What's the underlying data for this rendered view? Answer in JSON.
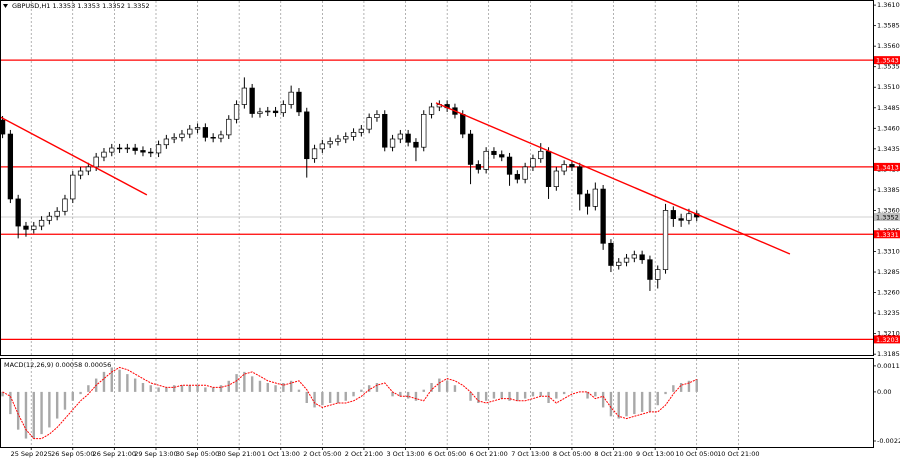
{
  "chart_data": [
    {
      "type": "candlestick",
      "title": "GBPUSD,H1  1.3353 1.3353 1.3352 1.3352",
      "x": [
        0,
        1,
        2,
        3,
        4,
        5,
        6,
        7,
        8,
        9,
        10,
        11,
        12,
        13,
        14,
        15,
        16,
        17,
        18,
        19,
        20,
        21,
        22,
        23,
        24,
        25,
        26,
        27,
        28,
        29,
        30,
        31,
        32,
        33,
        34,
        35,
        36,
        37,
        38,
        39,
        40,
        41,
        42,
        43,
        44,
        45,
        46,
        47,
        48,
        49,
        50,
        51,
        52,
        53,
        54,
        55,
        56,
        57,
        58,
        59,
        60,
        61,
        62,
        63,
        64,
        65,
        66,
        67,
        68,
        69,
        70,
        71,
        72,
        73,
        74,
        75,
        76,
        77,
        78,
        79,
        80,
        81,
        82,
        83,
        84,
        85,
        86,
        87,
        88,
        89
      ],
      "ohlc": [
        [
          1.347,
          1.3475,
          1.3448,
          1.3453
        ],
        [
          1.3453,
          1.3458,
          1.3369,
          1.3374
        ],
        [
          1.3374,
          1.3379,
          1.3326,
          1.3341
        ],
        [
          1.3341,
          1.3346,
          1.3328,
          1.3337
        ],
        [
          1.3337,
          1.3346,
          1.3332,
          1.3341
        ],
        [
          1.3341,
          1.3353,
          1.3336,
          1.3348
        ],
        [
          1.3348,
          1.3358,
          1.3343,
          1.3353
        ],
        [
          1.3353,
          1.3364,
          1.3348,
          1.3359
        ],
        [
          1.3359,
          1.3379,
          1.3354,
          1.3374
        ],
        [
          1.3374,
          1.3408,
          1.3369,
          1.3403
        ],
        [
          1.3403,
          1.3413,
          1.3398,
          1.3408
        ],
        [
          1.3408,
          1.3418,
          1.3403,
          1.3413
        ],
        [
          1.3413,
          1.343,
          1.3408,
          1.3425
        ],
        [
          1.3425,
          1.3436,
          1.342,
          1.3431
        ],
        [
          1.3431,
          1.3441,
          1.3426,
          1.3436
        ],
        [
          1.3436,
          1.3441,
          1.343,
          1.3435
        ],
        [
          1.3435,
          1.3441,
          1.343,
          1.3436
        ],
        [
          1.3436,
          1.3441,
          1.3428,
          1.3433
        ],
        [
          1.3433,
          1.3438,
          1.3426,
          1.3431
        ],
        [
          1.3431,
          1.3436,
          1.3425,
          1.343
        ],
        [
          1.343,
          1.3445,
          1.3425,
          1.344
        ],
        [
          1.344,
          1.3452,
          1.3435,
          1.3447
        ],
        [
          1.3447,
          1.3454,
          1.3442,
          1.3449
        ],
        [
          1.3449,
          1.3458,
          1.3444,
          1.3453
        ],
        [
          1.3453,
          1.3464,
          1.3448,
          1.3459
        ],
        [
          1.3459,
          1.3466,
          1.3454,
          1.3461
        ],
        [
          1.3461,
          1.3466,
          1.3444,
          1.3449
        ],
        [
          1.3449,
          1.3454,
          1.3443,
          1.3448
        ],
        [
          1.3448,
          1.3457,
          1.3443,
          1.3452
        ],
        [
          1.3452,
          1.3476,
          1.3447,
          1.3471
        ],
        [
          1.3471,
          1.3494,
          1.3466,
          1.3489
        ],
        [
          1.3489,
          1.3522,
          1.3484,
          1.3509
        ],
        [
          1.3509,
          1.3514,
          1.3473,
          1.3478
        ],
        [
          1.3478,
          1.3485,
          1.3473,
          1.348
        ],
        [
          1.348,
          1.3486,
          1.3475,
          1.3481
        ],
        [
          1.3481,
          1.3486,
          1.3474,
          1.3479
        ],
        [
          1.3479,
          1.3494,
          1.3474,
          1.3489
        ],
        [
          1.3489,
          1.3512,
          1.3484,
          1.3504
        ],
        [
          1.3504,
          1.3509,
          1.3475,
          1.348
        ],
        [
          1.348,
          1.3485,
          1.34,
          1.3423
        ],
        [
          1.3423,
          1.344,
          1.3418,
          1.3435
        ],
        [
          1.3435,
          1.3446,
          1.343,
          1.3441
        ],
        [
          1.3441,
          1.3449,
          1.3436,
          1.3444
        ],
        [
          1.3444,
          1.3452,
          1.3439,
          1.3447
        ],
        [
          1.3447,
          1.3455,
          1.3442,
          1.345
        ],
        [
          1.345,
          1.346,
          1.3445,
          1.3455
        ],
        [
          1.3455,
          1.3464,
          1.345,
          1.3459
        ],
        [
          1.3459,
          1.3478,
          1.3454,
          1.3473
        ],
        [
          1.3473,
          1.3482,
          1.3468,
          1.3477
        ],
        [
          1.3477,
          1.3482,
          1.3432,
          1.3437
        ],
        [
          1.3437,
          1.3452,
          1.3432,
          1.3447
        ],
        [
          1.3447,
          1.3458,
          1.3442,
          1.3453
        ],
        [
          1.3453,
          1.3458,
          1.3438,
          1.3443
        ],
        [
          1.3443,
          1.3448,
          1.342,
          1.3437
        ],
        [
          1.3437,
          1.3482,
          1.3432,
          1.3477
        ],
        [
          1.3477,
          1.3491,
          1.3472,
          1.3486
        ],
        [
          1.3486,
          1.3494,
          1.3481,
          1.3489
        ],
        [
          1.3489,
          1.3494,
          1.348,
          1.3485
        ],
        [
          1.3485,
          1.349,
          1.3472,
          1.3477
        ],
        [
          1.3477,
          1.3482,
          1.3448,
          1.3453
        ],
        [
          1.3453,
          1.3458,
          1.3392,
          1.3416
        ],
        [
          1.3416,
          1.3421,
          1.3405,
          1.341
        ],
        [
          1.341,
          1.3437,
          1.3405,
          1.3432
        ],
        [
          1.3432,
          1.3437,
          1.3423,
          1.3428
        ],
        [
          1.3428,
          1.3433,
          1.342,
          1.3425
        ],
        [
          1.3425,
          1.343,
          1.339,
          1.3404
        ],
        [
          1.3404,
          1.3409,
          1.3393,
          1.3398
        ],
        [
          1.3398,
          1.3418,
          1.3393,
          1.3413
        ],
        [
          1.3413,
          1.3428,
          1.3408,
          1.3423
        ],
        [
          1.3423,
          1.3442,
          1.3418,
          1.3432
        ],
        [
          1.3432,
          1.3437,
          1.3374,
          1.3389
        ],
        [
          1.3389,
          1.3413,
          1.3384,
          1.3408
        ],
        [
          1.3408,
          1.3421,
          1.3403,
          1.3416
        ],
        [
          1.3416,
          1.3421,
          1.3408,
          1.3413
        ],
        [
          1.3413,
          1.3418,
          1.336,
          1.338
        ],
        [
          1.338,
          1.3385,
          1.3355,
          1.3365
        ],
        [
          1.3365,
          1.3394,
          1.336,
          1.3386
        ],
        [
          1.3386,
          1.3391,
          1.3312,
          1.332
        ],
        [
          1.332,
          1.3325,
          1.3285,
          1.3293
        ],
        [
          1.3293,
          1.3302,
          1.3288,
          1.3297
        ],
        [
          1.3297,
          1.3307,
          1.3292,
          1.3302
        ],
        [
          1.3302,
          1.3311,
          1.3297,
          1.3306
        ],
        [
          1.3306,
          1.3311,
          1.3295,
          1.33
        ],
        [
          1.33,
          1.3305,
          1.3262,
          1.3276
        ],
        [
          1.3276,
          1.3293,
          1.3265,
          1.3288
        ],
        [
          1.3288,
          1.3368,
          1.3283,
          1.336
        ],
        [
          1.336,
          1.3365,
          1.334,
          1.335
        ],
        [
          1.335,
          1.3356,
          1.334,
          1.3348
        ],
        [
          1.3348,
          1.3362,
          1.3343,
          1.3356
        ],
        [
          1.3356,
          1.336,
          1.3347,
          1.3352
        ]
      ],
      "xlim": [
        -0.33,
        111.6
      ],
      "ylim": [
        1.3184,
        1.3615
      ],
      "yticks": [
        {
          "value": 1.361,
          "label": "1.3610"
        },
        1.3585,
        {
          "value": 1.356,
          "label": "1.3560"
        },
        1.3535,
        {
          "value": 1.351,
          "label": "1.3510"
        },
        1.3485,
        {
          "value": 1.346,
          "label": "1.3460"
        },
        1.3435,
        {
          "value": 1.341,
          "label": "1.3410"
        },
        1.3385,
        {
          "value": 1.336,
          "label": "1.3360"
        },
        1.3335,
        {
          "value": 1.331,
          "label": "1.3310"
        },
        1.3285,
        {
          "value": 1.326,
          "label": "1.3260"
        },
        1.3235,
        {
          "value": 1.321,
          "label": "1.3210"
        },
        1.3185
      ],
      "levels": [
        1.3543,
        1.3413,
        1.3331,
        1.3203
      ],
      "level_color": "#ff0000",
      "last_price": 1.3352,
      "trendlines": [
        {
          "x": [
            -0.33,
            18.5
          ],
          "y": [
            1.3474,
            1.3379
          ]
        },
        {
          "x": [
            55.57,
            100.95
          ],
          "y": [
            1.3491,
            1.3307
          ]
        }
      ],
      "grid": true
    },
    {
      "type": "macd",
      "title": "MACD(12,26,9) 0.00058 0.00056",
      "x": [
        0,
        1,
        2,
        3,
        4,
        5,
        6,
        7,
        8,
        9,
        10,
        11,
        12,
        13,
        14,
        15,
        16,
        17,
        18,
        19,
        20,
        21,
        22,
        23,
        24,
        25,
        26,
        27,
        28,
        29,
        30,
        31,
        32,
        33,
        34,
        35,
        36,
        37,
        38,
        39,
        40,
        41,
        42,
        43,
        44,
        45,
        46,
        47,
        48,
        49,
        50,
        51,
        52,
        53,
        54,
        55,
        56,
        57,
        58,
        59,
        60,
        61,
        62,
        63,
        64,
        65,
        66,
        67,
        68,
        69,
        70,
        71,
        72,
        73,
        74,
        75,
        76,
        77,
        78,
        79,
        80,
        81,
        82,
        83,
        84,
        85,
        86,
        87,
        88,
        89
      ],
      "series": [
        {
          "name": "MACD",
          "color": "#a8a8a8",
          "values": [
            -0.0002,
            -0.001,
            -0.0017,
            -0.0021,
            -0.0021,
            -0.0019,
            -0.0016,
            -0.0012,
            -0.0008,
            -0.0004,
            -0.0001,
            0.0003,
            0.0006,
            0.0009,
            0.0011,
            0.001,
            0.0008,
            0.0006,
            0.0004,
            0.0003,
            0.0002,
            0.0002,
            0.0003,
            0.0003,
            0.0003,
            0.0003,
            0.0002,
            0.0002,
            0.0003,
            0.0005,
            0.0008,
            0.0009,
            0.0007,
            0.0005,
            0.0004,
            0.0003,
            0.0004,
            0.0005,
            0.0001,
            -0.0005,
            -0.0007,
            -0.0006,
            -0.0005,
            -0.0005,
            -0.0004,
            -0.0002,
            0.0001,
            0.0003,
            0.0004,
            0,
            -0.0002,
            -0.0002,
            -0.0003,
            -0.0004,
            0.0001,
            0.0004,
            0.0006,
            0.0005,
            0.0003,
            0,
            -0.0004,
            -0.0005,
            -0.0004,
            -0.0003,
            -0.0003,
            -0.0004,
            -0.0004,
            -0.0003,
            -0.0002,
            -0.0002,
            -0.0005,
            -0.0003,
            -0.0001,
            0,
            0,
            -0.0003,
            -0.0002,
            -0.0007,
            -0.0011,
            -0.0012,
            -0.0011,
            -0.001,
            -0.0009,
            -0.0009,
            -0.0006,
            -0.0001,
            0.0003,
            0.0004,
            0.0005,
            0.00058
          ]
        },
        {
          "name": "Signal",
          "color": "#ff0000",
          "values": [
            0,
            -0.0002,
            -0.001,
            -0.0017,
            -0.0021,
            -0.0021,
            -0.0019,
            -0.0016,
            -0.0012,
            -0.0008,
            -0.0004,
            -0.0001,
            0.0003,
            0.0006,
            0.0009,
            0.0011,
            0.001,
            0.0008,
            0.0006,
            0.0004,
            0.0003,
            0.0002,
            0.0002,
            0.0003,
            0.0003,
            0.0003,
            0.0003,
            0.0002,
            0.0002,
            0.0003,
            0.0005,
            0.0008,
            0.0009,
            0.0007,
            0.0005,
            0.0004,
            0.0003,
            0.0004,
            0.0005,
            0.0001,
            -0.0005,
            -0.0007,
            -0.0006,
            -0.0005,
            -0.0005,
            -0.0004,
            -0.0002,
            0.0001,
            0.0003,
            0.0004,
            0,
            -0.0002,
            -0.0002,
            -0.0003,
            -0.0004,
            0.0001,
            0.0004,
            0.0006,
            0.0005,
            0.0003,
            0,
            -0.0004,
            -0.0005,
            -0.0004,
            -0.0003,
            -0.0003,
            -0.0004,
            -0.0004,
            -0.0003,
            -0.0002,
            -0.0002,
            -0.0005,
            -0.0003,
            -0.0001,
            0,
            0,
            -0.0003,
            -0.0002,
            -0.0007,
            -0.0011,
            -0.0012,
            -0.0011,
            -0.001,
            -0.0009,
            -0.0009,
            -0.0006,
            -0.0001,
            0.0003,
            0.0004,
            0.00056
          ]
        }
      ],
      "xlim": [
        -0.33,
        111.6
      ],
      "ylim": [
        -0.00248,
        0.00148
      ],
      "yticks": [
        0.00117,
        {
          "value": 0,
          "label": "0.00"
        },
        -0.00221
      ],
      "xticks": [
        {
          "value": 3.67,
          "label": "25 Sep 2025"
        },
        {
          "value": 9,
          "label": "26 Sep 05:00"
        },
        {
          "value": 14.33,
          "label": "26 Sep 21:00"
        },
        {
          "value": 19.67,
          "label": "29 Sep 13:00"
        },
        {
          "value": 25,
          "label": "30 Sep 05:00"
        },
        {
          "value": 30.33,
          "label": "30 Sep 21:00"
        },
        {
          "value": 35.67,
          "label": "1 Oct 13:00"
        },
        {
          "value": 41,
          "label": "2 Oct 05:00"
        },
        {
          "value": 46.33,
          "label": "2 Oct 21:00"
        },
        {
          "value": 51.67,
          "label": "3 Oct 13:00"
        },
        {
          "value": 57,
          "label": "6 Oct 05:00"
        },
        {
          "value": 62.33,
          "label": "6 Oct 21:00"
        },
        {
          "value": 67.67,
          "label": "7 Oct 13:00"
        },
        {
          "value": 73,
          "label": "8 Oct 05:00"
        },
        {
          "value": 78.33,
          "label": "8 Oct 21:00"
        },
        {
          "value": 83.67,
          "label": "9 Oct 13:00"
        },
        {
          "value": 89,
          "label": "10 Oct 05:00"
        },
        {
          "value": 94.33,
          "label": "10 Oct 21:00"
        }
      ],
      "grid": true
    }
  ]
}
